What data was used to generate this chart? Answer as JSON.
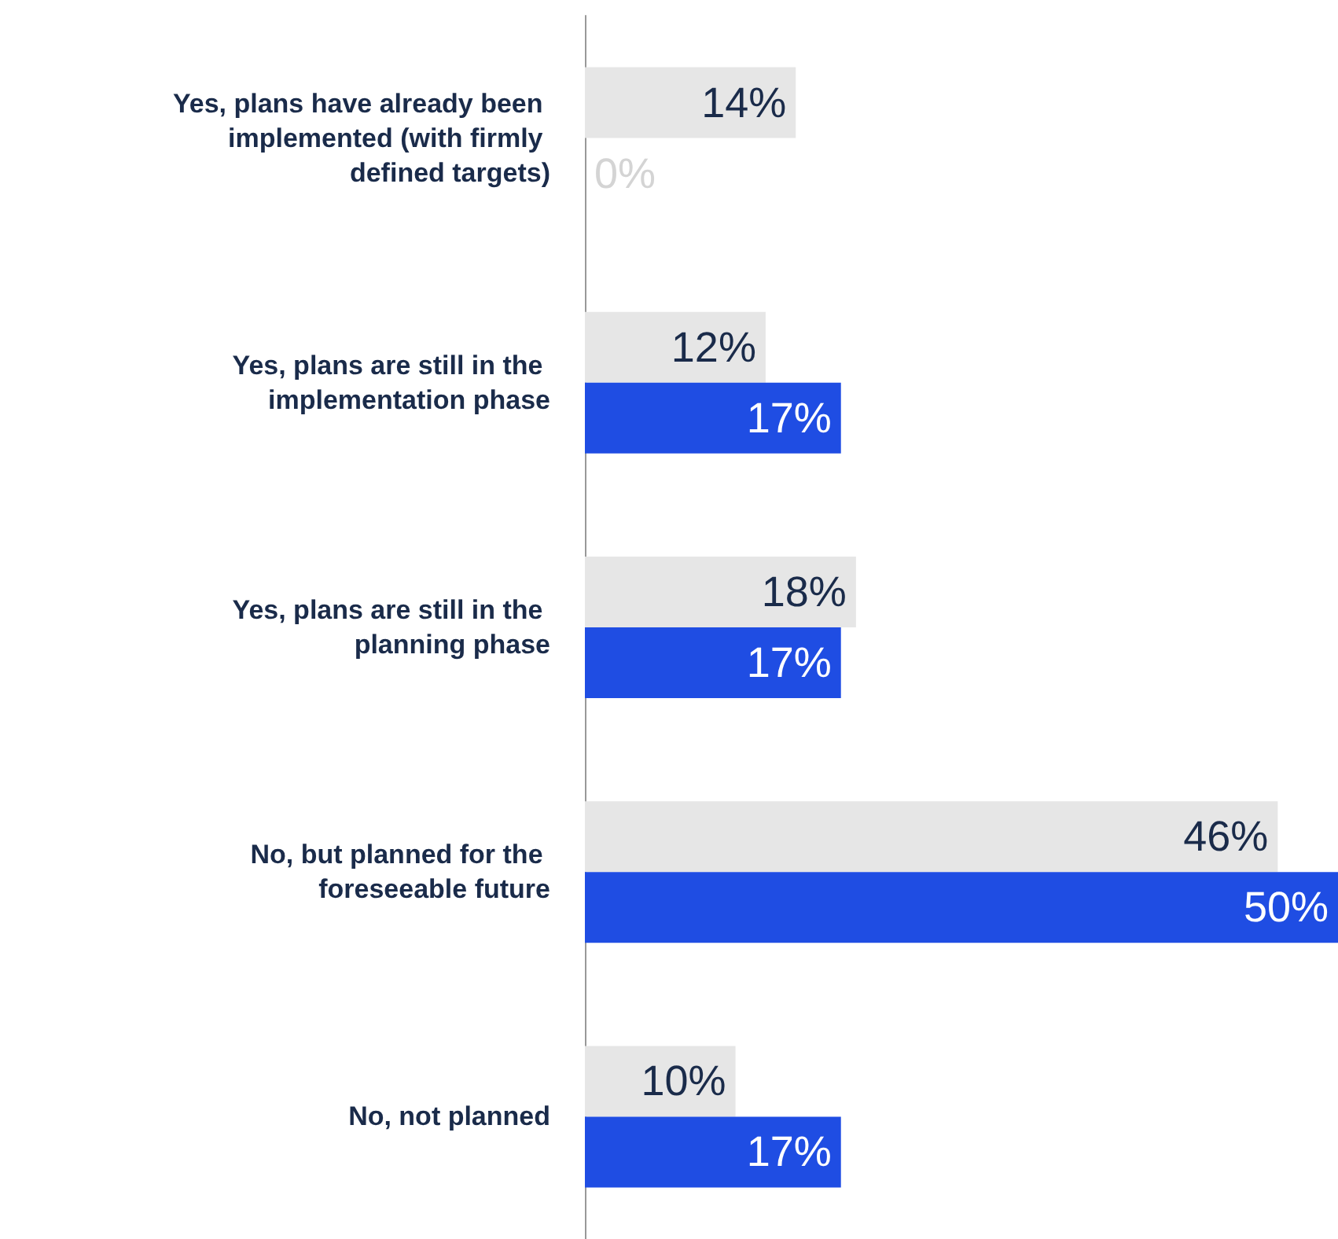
{
  "chart_data": {
    "type": "bar",
    "orientation": "horizontal",
    "categories": [
      "Yes, plans have already been implemented (with firmly defined targets)",
      "Yes, plans are still in the implementation phase",
      "Yes, plans are still in the planning phase",
      "No, but planned for the foreseeable future",
      "No, not planned"
    ],
    "series": [
      {
        "color": "#e6e6e6",
        "values": [
          14,
          12,
          18,
          46,
          10
        ],
        "value_labels": [
          "14%",
          "12%",
          "18%",
          "46%",
          "10%"
        ]
      },
      {
        "color": "#1f4de3",
        "values": [
          0,
          17,
          17,
          50,
          17
        ],
        "value_labels": [
          "0%",
          "17%",
          "17%",
          "50%",
          "17%"
        ]
      }
    ],
    "tick_labels": "y",
    "grid": false
  }
}
